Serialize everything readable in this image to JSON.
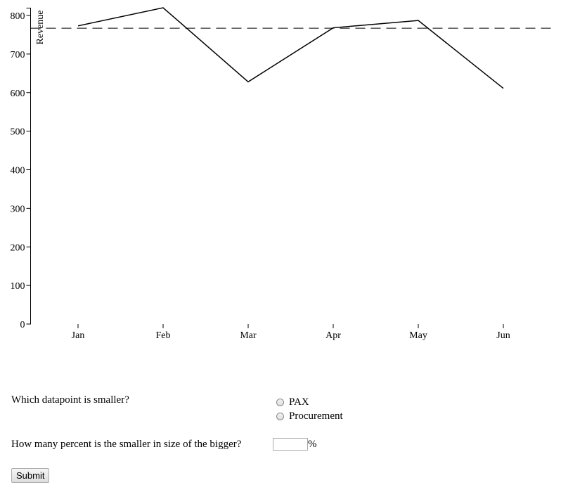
{
  "chart_data": {
    "type": "line",
    "categories": [
      "Jan",
      "Feb",
      "Mar",
      "Apr",
      "May",
      "Jun"
    ],
    "series": [
      {
        "values": [
          773,
          820,
          628,
          768,
          787,
          611
        ]
      }
    ],
    "reference_line": {
      "value": 767,
      "style": "dashed"
    },
    "ylabel": "Revenue",
    "xlabel": "",
    "title": "",
    "ylim": [
      0,
      800
    ],
    "yticks": [
      0,
      100,
      200,
      300,
      400,
      500,
      600,
      700,
      800
    ],
    "grid": false,
    "legend": "none"
  },
  "questions": {
    "q1": {
      "text": "Which datapoint is smaller?",
      "options": [
        "PAX",
        "Procurement"
      ]
    },
    "q2": {
      "text": "How many percent is the smaller in size of the bigger?",
      "input_value": "",
      "unit": "%"
    }
  },
  "submit_label": "Submit"
}
